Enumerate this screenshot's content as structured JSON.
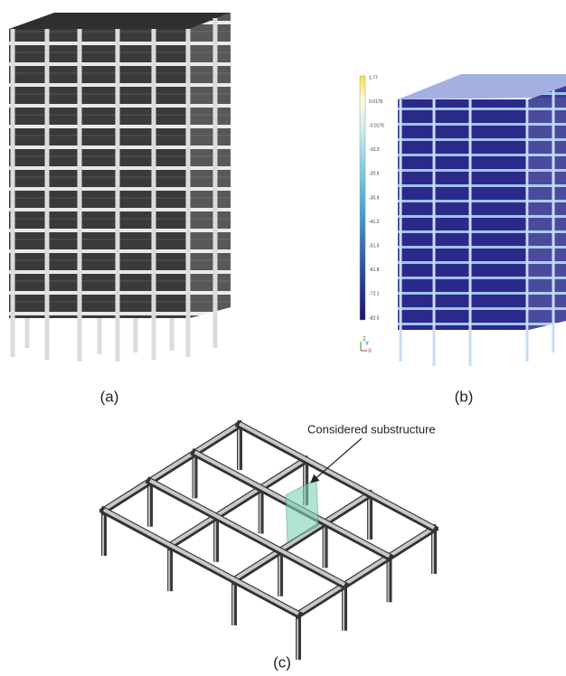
{
  "panels": [
    {
      "label": "(a)"
    },
    {
      "label": "(b)",
      "colorbar": {
        "labels": [
          "1.77",
          "0.0176",
          "-0.0176",
          "-10.3",
          "-20.6",
          "-30.9",
          "-41.2",
          "-51.5",
          "-61.8",
          "-72.1",
          "-82.5"
        ]
      },
      "axis_triad": [
        "Z",
        "Y",
        "X"
      ]
    },
    {
      "label": "(c)",
      "annotation": "Considered substructure"
    }
  ]
}
